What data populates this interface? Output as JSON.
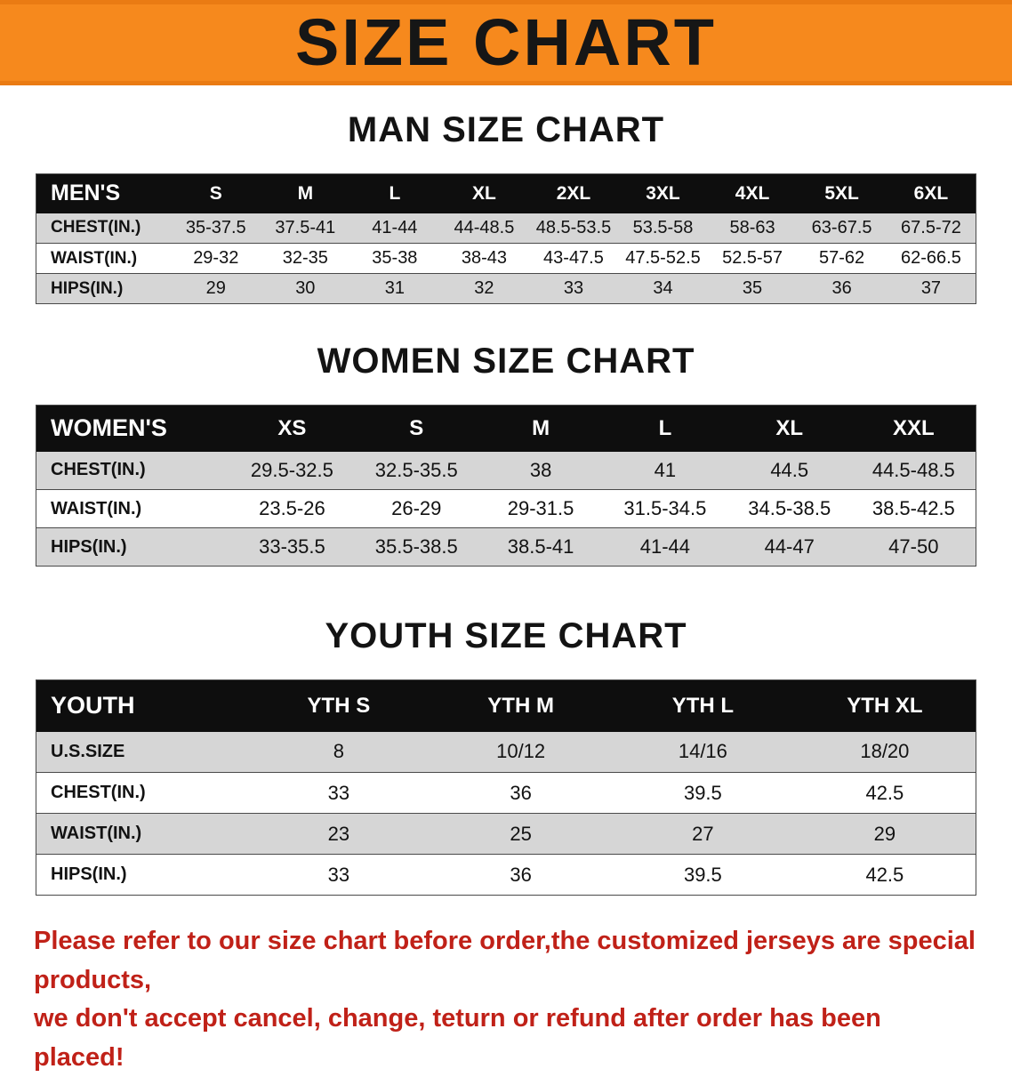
{
  "banner": {
    "title": "SIZE CHART"
  },
  "colors": {
    "banner_bg": "#f6891d",
    "table_header_bg": "#0e0e0e",
    "stripe_bg": "#d6d6d6",
    "disclaimer_text": "#c02118"
  },
  "men": {
    "heading": "MAN SIZE CHART",
    "header": [
      "MEN'S",
      "S",
      "M",
      "L",
      "XL",
      "2XL",
      "3XL",
      "4XL",
      "5XL",
      "6XL"
    ],
    "rows": [
      [
        "CHEST(IN.)",
        "35-37.5",
        "37.5-41",
        "41-44",
        "44-48.5",
        "48.5-53.5",
        "53.5-58",
        "58-63",
        "63-67.5",
        "67.5-72"
      ],
      [
        "WAIST(IN.)",
        "29-32",
        "32-35",
        "35-38",
        "38-43",
        "43-47.5",
        "47.5-52.5",
        "52.5-57",
        "57-62",
        "62-66.5"
      ],
      [
        "HIPS(IN.)",
        "29",
        "30",
        "31",
        "32",
        "33",
        "34",
        "35",
        "36",
        "37"
      ]
    ]
  },
  "women": {
    "heading": "WOMEN SIZE CHART",
    "header": [
      "WOMEN'S",
      "XS",
      "S",
      "M",
      "L",
      "XL",
      "XXL"
    ],
    "rows": [
      [
        "CHEST(IN.)",
        "29.5-32.5",
        "32.5-35.5",
        "38",
        "41",
        "44.5",
        "44.5-48.5"
      ],
      [
        "WAIST(IN.)",
        "23.5-26",
        "26-29",
        "29-31.5",
        "31.5-34.5",
        "34.5-38.5",
        "38.5-42.5"
      ],
      [
        "HIPS(IN.)",
        "33-35.5",
        "35.5-38.5",
        "38.5-41",
        "41-44",
        "44-47",
        "47-50"
      ]
    ]
  },
  "youth": {
    "heading": "YOUTH SIZE CHART",
    "header": [
      "YOUTH",
      "YTH S",
      "YTH M",
      "YTH L",
      "YTH XL"
    ],
    "rows": [
      [
        "U.S.SIZE",
        "8",
        "10/12",
        "14/16",
        "18/20"
      ],
      [
        "CHEST(IN.)",
        "33",
        "36",
        "39.5",
        "42.5"
      ],
      [
        "WAIST(IN.)",
        "23",
        "25",
        "27",
        "29"
      ],
      [
        "HIPS(IN.)",
        "33",
        "36",
        "39.5",
        "42.5"
      ]
    ]
  },
  "disclaimer": {
    "line1": "Please refer to our size chart before order,the customized jerseys are special products,",
    "line2": "we don't accept cancel, change, teturn or refund after order has been placed!"
  }
}
